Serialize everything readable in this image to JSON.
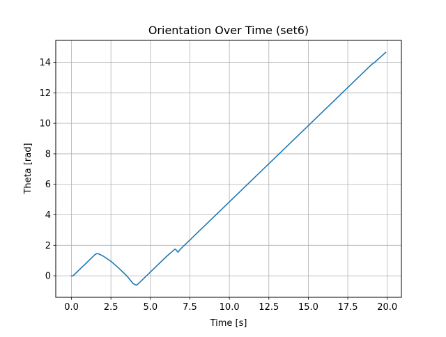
{
  "chart_data": {
    "type": "line",
    "title": "Orientation Over Time (set6)",
    "xlabel": "Time [s]",
    "ylabel": "Theta [rad]",
    "xlim": [
      -0.995,
      20.895
    ],
    "ylim": [
      -1.41,
      15.44
    ],
    "xticks": [
      0.0,
      2.5,
      5.0,
      7.5,
      10.0,
      12.5,
      15.0,
      17.5,
      20.0
    ],
    "xtick_labels": [
      "0.0",
      "2.5",
      "5.0",
      "7.5",
      "10.0",
      "12.5",
      "15.0",
      "17.5",
      "20.0"
    ],
    "yticks": [
      0,
      2,
      4,
      6,
      8,
      10,
      12,
      14
    ],
    "ytick_labels": [
      "0",
      "2",
      "4",
      "6",
      "8",
      "10",
      "12",
      "14"
    ],
    "grid": true,
    "line_color": "#1f77b4",
    "series": [
      {
        "x": [
          0.0,
          0.1,
          1.5,
          1.6,
          1.7,
          2.0,
          2.5,
          3.0,
          3.5,
          3.9,
          4.1,
          4.2,
          5.0,
          6.0,
          6.55,
          6.6,
          6.75,
          6.9,
          7.5,
          10.0,
          12.5,
          15.0,
          17.5,
          19.0,
          19.2,
          19.9
        ],
        "y": [
          0.0,
          0.0,
          1.4,
          1.45,
          1.45,
          1.3,
          0.95,
          0.5,
          0.0,
          -0.5,
          -0.62,
          -0.55,
          0.25,
          1.25,
          1.75,
          1.73,
          1.55,
          1.75,
          2.35,
          4.85,
          7.35,
          9.85,
          12.35,
          13.85,
          14.0,
          14.65
        ]
      }
    ]
  }
}
